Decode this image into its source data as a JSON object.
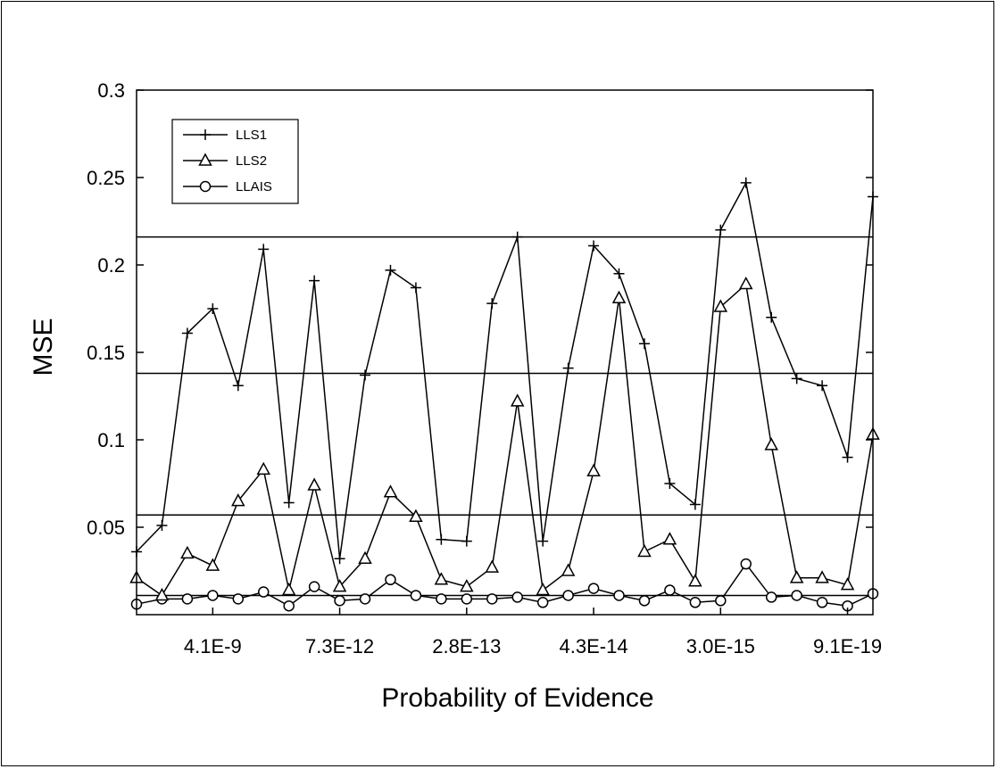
{
  "chart_data": {
    "type": "line",
    "xlabel": "Probability of Evidence",
    "ylabel": "MSE",
    "ylim": [
      0,
      0.3
    ],
    "yticks": [
      "0.05",
      "0.1",
      "0.15",
      "0.2",
      "0.25",
      "0.3"
    ],
    "xtick_labels": [
      {
        "index": 3,
        "label": "4.1E-9"
      },
      {
        "index": 8,
        "label": "7.3E-12"
      },
      {
        "index": 13,
        "label": "2.8E-13"
      },
      {
        "index": 18,
        "label": "4.3E-14"
      },
      {
        "index": 23,
        "label": "3.0E-15"
      },
      {
        "index": 28,
        "label": "9.1E-19"
      }
    ],
    "n_points": 30,
    "grid": false,
    "legend_position": "top-left",
    "reference_lines": [
      0.011,
      0.057,
      0.138,
      0.216
    ],
    "series": [
      {
        "name": "LLS1",
        "marker": "plus",
        "values": [
          0.036,
          0.051,
          0.161,
          0.175,
          0.131,
          0.209,
          0.064,
          0.191,
          0.032,
          0.137,
          0.197,
          0.187,
          0.043,
          0.042,
          0.178,
          0.216,
          0.042,
          0.141,
          0.211,
          0.195,
          0.155,
          0.075,
          0.063,
          0.22,
          0.247,
          0.17,
          0.135,
          0.131,
          0.09,
          0.239
        ]
      },
      {
        "name": "LLS2",
        "marker": "triangle",
        "values": [
          0.021,
          0.011,
          0.035,
          0.028,
          0.065,
          0.083,
          0.014,
          0.074,
          0.016,
          0.032,
          0.07,
          0.056,
          0.02,
          0.016,
          0.027,
          0.122,
          0.014,
          0.025,
          0.082,
          0.181,
          0.036,
          0.043,
          0.019,
          0.176,
          0.189,
          0.097,
          0.021,
          0.021,
          0.017,
          0.103
        ]
      },
      {
        "name": "LLAIS",
        "marker": "circle",
        "values": [
          0.006,
          0.009,
          0.009,
          0.011,
          0.009,
          0.013,
          0.005,
          0.016,
          0.008,
          0.009,
          0.02,
          0.011,
          0.009,
          0.009,
          0.009,
          0.01,
          0.007,
          0.011,
          0.015,
          0.011,
          0.008,
          0.014,
          0.007,
          0.008,
          0.029,
          0.01,
          0.011,
          0.007,
          0.005,
          0.012
        ]
      }
    ]
  }
}
